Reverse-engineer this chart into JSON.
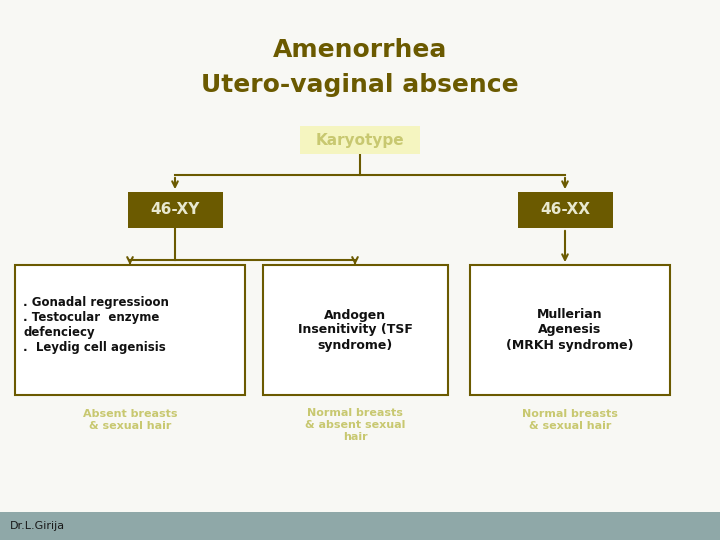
{
  "title_line1": "Amenorrhea",
  "title_line2": "Utero-vaginal absence",
  "title_color": "#6b5a00",
  "bg_color": "#f8f8f4",
  "root_label": "Karyotype",
  "root_bg": "#f5f5c0",
  "root_text_color": "#c8c870",
  "branch_left_label": "46-XY",
  "branch_right_label": "46-XX",
  "branch_bg": "#6b5a00",
  "branch_text_color": "#e8e8d0",
  "box_border_color": "#6b5a00",
  "box_bg": "#ffffff",
  "box_text_color": "#111111",
  "arrow_color": "#6b5a00",
  "leaf1_text": ". Gonadal regressioon\n. Testocular  enzyme\ndefenciecy\n.  Leydig cell agenisis",
  "leaf2_text": "Andogen\nInsenitivity (TSF\nsyndrome)",
  "leaf3_text": "Mullerian\nAgenesis\n(MRKH syndrome)",
  "leaf1_sub": "Absent breasts\n& sexual hair",
  "leaf2_sub": "Normal breasts\n& absent sexual\nhair",
  "leaf3_sub": "Normal breasts\n& sexual hair",
  "sub_text_color": "#c8c870",
  "footer_text": "Dr.L.Girija",
  "footer_bg": "#8fa8a8",
  "footer_text_color": "#1a1a1a"
}
